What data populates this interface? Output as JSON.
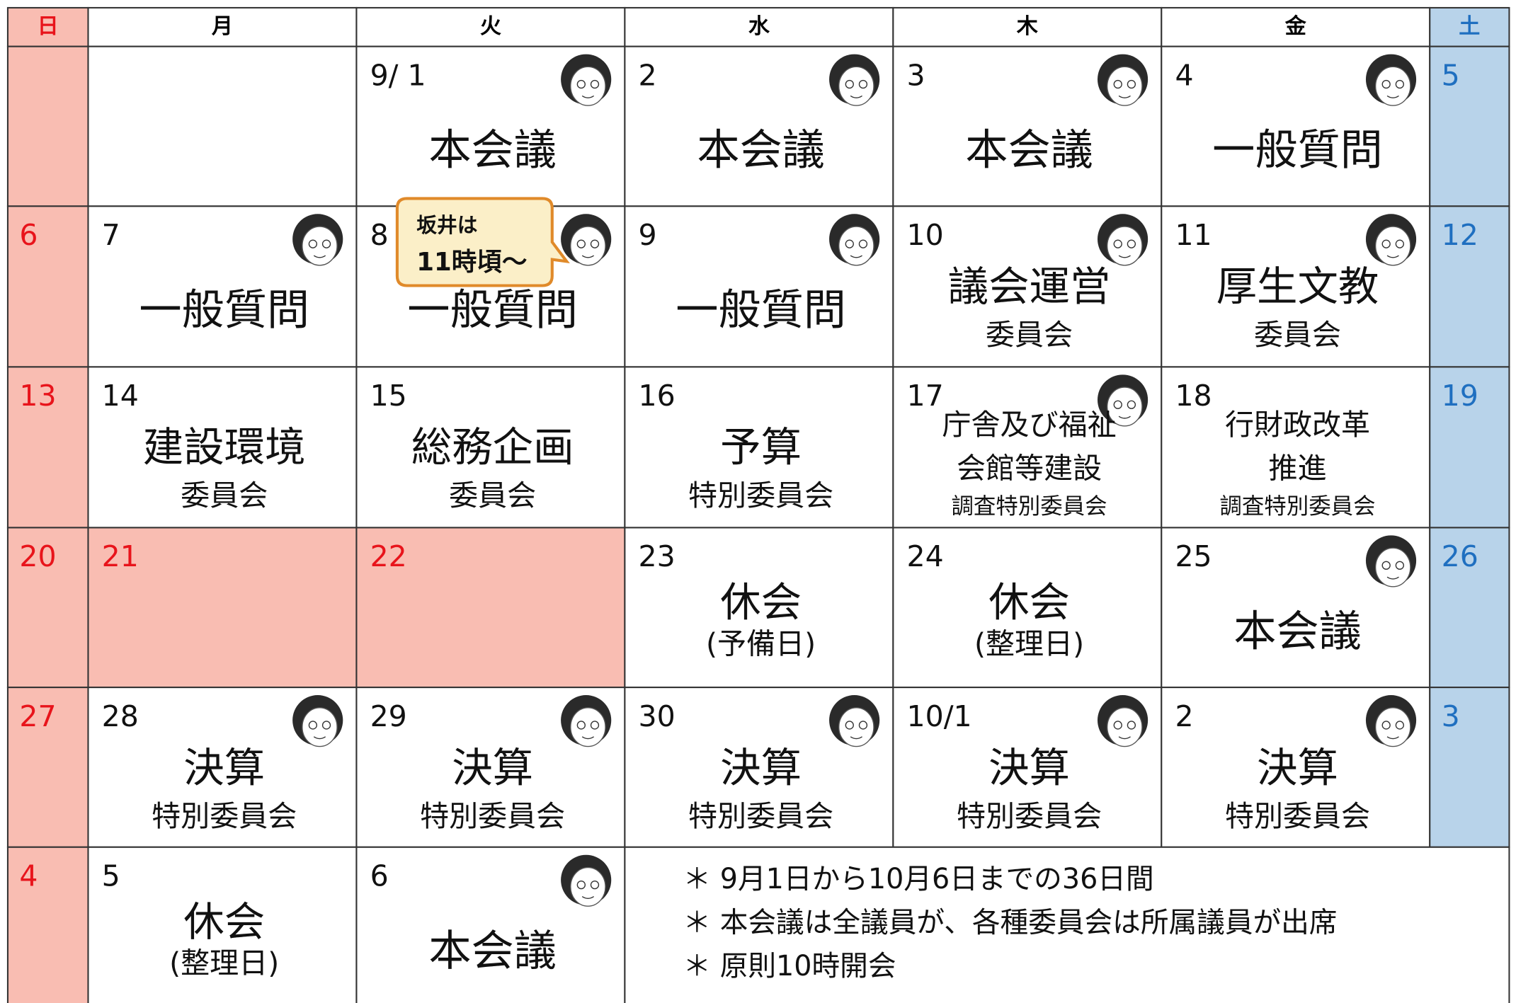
{
  "header": [
    "日",
    "月",
    "火",
    "水",
    "木",
    "金",
    "土"
  ],
  "weeks": [
    [
      {
        "date": ""
      },
      {
        "date": ""
      },
      {
        "date": "9/ 1",
        "lines": [
          "本会議"
        ],
        "face": true
      },
      {
        "date": "2",
        "lines": [
          "本会議"
        ],
        "face": true
      },
      {
        "date": "3",
        "lines": [
          "本会議"
        ],
        "face": true
      },
      {
        "date": "4",
        "lines": [
          "一般質問"
        ],
        "face": true
      },
      {
        "date": "5"
      }
    ],
    [
      {
        "date": "6"
      },
      {
        "date": "7",
        "lines": [
          "一般質問"
        ],
        "face": true
      },
      {
        "date": "8",
        "lines": [
          "一般質問"
        ],
        "face": true
      },
      {
        "date": "9",
        "lines": [
          "一般質問"
        ],
        "face": true
      },
      {
        "date": "10",
        "lines": [
          "議会運営",
          "委員会"
        ],
        "face": true
      },
      {
        "date": "11",
        "lines": [
          "厚生文教",
          "委員会"
        ],
        "face": true
      },
      {
        "date": "12"
      }
    ],
    [
      {
        "date": "13"
      },
      {
        "date": "14",
        "lines": [
          "建設環境",
          "委員会"
        ]
      },
      {
        "date": "15",
        "lines": [
          "総務企画",
          "委員会"
        ]
      },
      {
        "date": "16",
        "lines": [
          "予算",
          "特別委員会"
        ]
      },
      {
        "date": "17",
        "lines": [
          "庁舎及び福祉",
          "会館等建設",
          "調査特別委員会"
        ],
        "face": true
      },
      {
        "date": "18",
        "lines": [
          "行財政改革",
          "推進",
          "調査特別委員会"
        ]
      },
      {
        "date": "19"
      }
    ],
    [
      {
        "date": "20"
      },
      {
        "date": "21",
        "holiday": true
      },
      {
        "date": "22",
        "holiday": true
      },
      {
        "date": "23",
        "lines": [
          "休会",
          "(予備日)"
        ]
      },
      {
        "date": "24",
        "lines": [
          "休会",
          "(整理日)"
        ]
      },
      {
        "date": "25",
        "lines": [
          "本会議"
        ],
        "face": true
      },
      {
        "date": "26"
      }
    ],
    [
      {
        "date": "27"
      },
      {
        "date": "28",
        "lines": [
          "決算",
          "特別委員会"
        ],
        "face": true
      },
      {
        "date": "29",
        "lines": [
          "決算",
          "特別委員会"
        ],
        "face": true
      },
      {
        "date": "30",
        "lines": [
          "決算",
          "特別委員会"
        ],
        "face": true
      },
      {
        "date": "10/1",
        "lines": [
          "決算",
          "特別委員会"
        ],
        "face": true
      },
      {
        "date": "2",
        "lines": [
          "決算",
          "特別委員会"
        ],
        "face": true
      },
      {
        "date": "3"
      }
    ],
    [
      {
        "date": "4"
      },
      {
        "date": "5",
        "lines": [
          "休会",
          "(整理日)"
        ]
      },
      {
        "date": "6",
        "lines": [
          "本会議"
        ],
        "face": true
      }
    ]
  ],
  "notes": [
    "＊ 9月1日から10月6日までの36日間",
    "＊ 本会議は全議員が、各種委員会は所属議員が出席",
    "＊ 原則10時開会"
  ],
  "callout": [
    "坂井は",
    "11時頃～"
  ]
}
